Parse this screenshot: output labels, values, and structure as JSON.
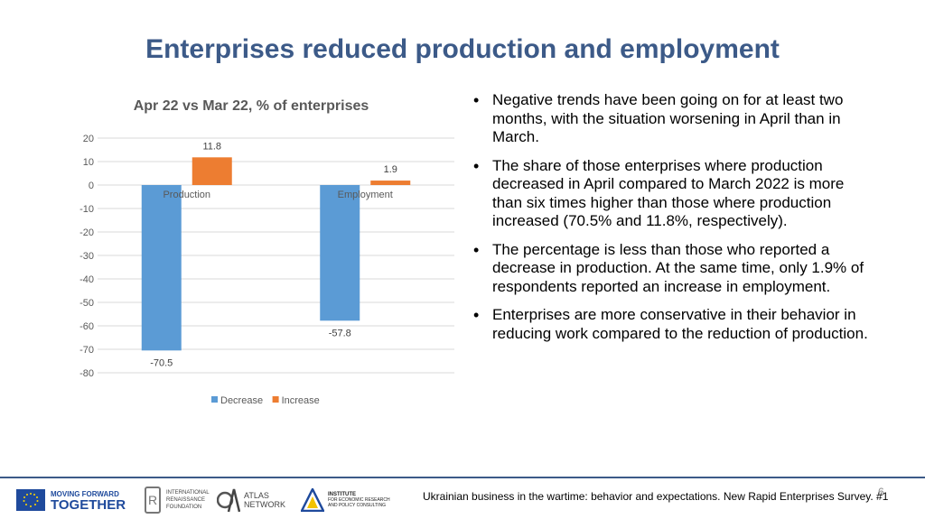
{
  "title": "Enterprises reduced production and employment",
  "chart_data": {
    "type": "bar",
    "title": "Apr 22 vs Mar 22, % of enterprises",
    "categories": [
      "Production",
      "Employment"
    ],
    "series": [
      {
        "name": "Decrease",
        "values": [
          -70.5,
          -57.8
        ],
        "color": "#5b9bd5"
      },
      {
        "name": "Increase",
        "values": [
          11.8,
          1.9
        ],
        "color": "#ed7d31"
      }
    ],
    "ylim": [
      -80,
      20
    ],
    "yticks": [
      20,
      10,
      0,
      -10,
      -20,
      -30,
      -40,
      -50,
      -60,
      -70,
      -80
    ],
    "grid": true,
    "legend_position": "bottom",
    "xlabel": "",
    "ylabel": ""
  },
  "bullets": [
    "Negative trends have been going on for at least two months, with the situation worsening in April than in March.",
    "The share of those enterprises where production decreased in April compared to March 2022 is more than six times higher than those where production increased (70.5% and 11.8%, respectively).",
    "The percentage is less than those who reported a decrease in production. At the same time, only 1.9% of respondents reported an increase in employment.",
    "Enterprises are more conservative in their behavior in reducing work compared to the reduction of production."
  ],
  "bullet_glyph": "•",
  "footer": {
    "page_number": "6",
    "source": "Ukrainian business in the wartime: behavior and expectations. New Rapid Enterprises Survey. #1",
    "logos": {
      "mft_line1": "MOVING FORWARD",
      "mft_line2": "TOGETHER",
      "irf_line1": "INTERNATIONAL",
      "irf_line2": "RENAISSANCE",
      "irf_line3": "FOUNDATION",
      "atlas_line1": "ATLAS",
      "atlas_line2": "NETWORK",
      "ier_line1": "INSTITUTE",
      "ier_line2": "FOR ECONOMIC RESEARCH",
      "ier_line3": "AND POLICY CONSULTING"
    }
  },
  "icons": {
    "eu_flag": "eu-flag-icon",
    "irf": "irf-logo-icon",
    "atlas": "atlas-logo-icon",
    "ier": "ier-triangle-icon"
  }
}
